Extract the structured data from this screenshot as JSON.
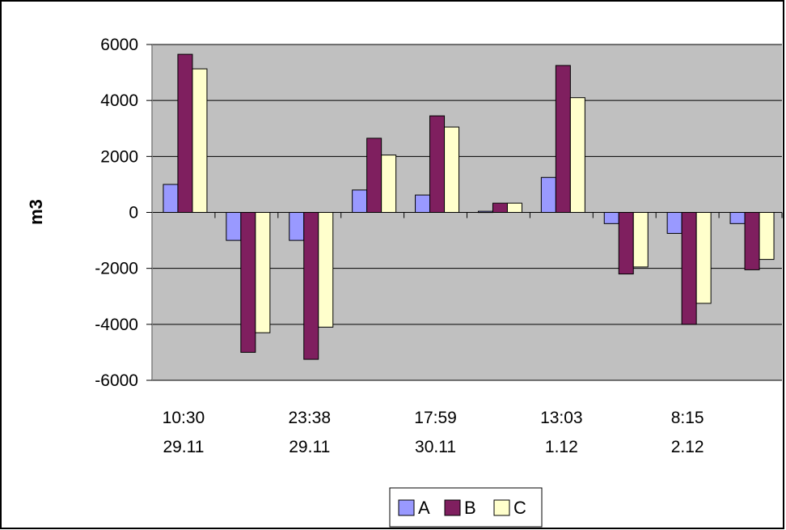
{
  "chart_data": {
    "type": "bar",
    "title": "",
    "xlabel": "",
    "ylabel": "m3",
    "ylim": [
      -6000,
      6000
    ],
    "yticks": [
      "6000",
      "4000",
      "2000",
      "0",
      "-2000",
      "-4000",
      "-6000"
    ],
    "grid": "horizontal",
    "legend_position": "bottom",
    "plot_background": "#C0C0C0",
    "categories": [
      "10:30 29.11",
      "",
      "23:38 29.11",
      "",
      "17:59 30.11",
      "",
      "13:03 1.12",
      "",
      "8:15 2.12",
      ""
    ],
    "category_label_lines": [
      [
        "10:30",
        "29.11"
      ],
      [
        "",
        ""
      ],
      [
        "23:38",
        "29.11"
      ],
      [
        "",
        ""
      ],
      [
        "17:59",
        "30.11"
      ],
      [
        "",
        ""
      ],
      [
        "13:03",
        "1.12"
      ],
      [
        "",
        ""
      ],
      [
        "8:15",
        "2.12"
      ],
      [
        "",
        ""
      ]
    ],
    "series": [
      {
        "name": "A",
        "color": "#9999FF",
        "values": [
          1000,
          -1000,
          -1000,
          800,
          620,
          40,
          1250,
          -400,
          -750,
          -400
        ]
      },
      {
        "name": "B",
        "color": "#7F1F5F",
        "values": [
          5650,
          -5000,
          -5250,
          2650,
          3450,
          330,
          5250,
          -2200,
          -4000,
          -2050
        ]
      },
      {
        "name": "C",
        "color": "#FFFFCC",
        "values": [
          5130,
          -4300,
          -4100,
          2050,
          3050,
          330,
          4100,
          -1950,
          -3250,
          -1680
        ]
      }
    ]
  }
}
